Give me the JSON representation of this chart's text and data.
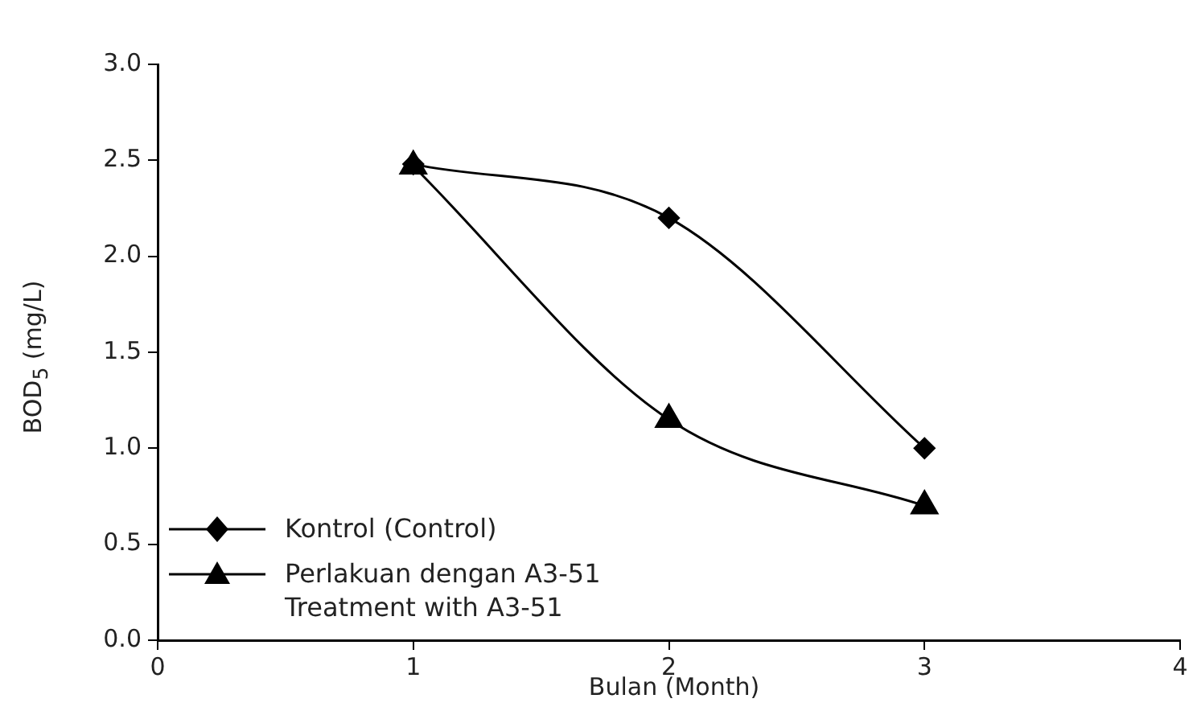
{
  "chart_data": {
    "type": "line",
    "xlabel": "Bulan (Month)",
    "ylabel": "BOD$_{5}$ (mg/L)",
    "x": [
      1,
      2,
      3
    ],
    "series": [
      {
        "name": "Kontrol (Control)",
        "color": "#000000",
        "marker": "diamond",
        "values": [
          2.48,
          2.2,
          1.0
        ]
      },
      {
        "name": "Perlakuan dengan A3-51\nTreatment with A3-51",
        "color": "#000000",
        "marker": "triangle",
        "values": [
          2.47,
          1.15,
          0.7
        ]
      }
    ],
    "xlim": [
      0,
      4
    ],
    "xticks": [
      0,
      1,
      2,
      3,
      4
    ],
    "ylim": [
      0,
      3
    ],
    "yticks": [
      {
        "value": 0,
        "label": "0.0"
      },
      {
        "value": 0.5,
        "label": "0.5"
      },
      {
        "value": 1,
        "label": "1.0"
      },
      {
        "value": 1.5,
        "label": "1.5"
      },
      {
        "value": 2,
        "label": "2.0"
      },
      {
        "value": 2.5,
        "label": "2.5"
      },
      {
        "value": 3,
        "label": "3.0"
      }
    ],
    "grid": false,
    "legend": "bottom left",
    "line_style": "solid"
  }
}
